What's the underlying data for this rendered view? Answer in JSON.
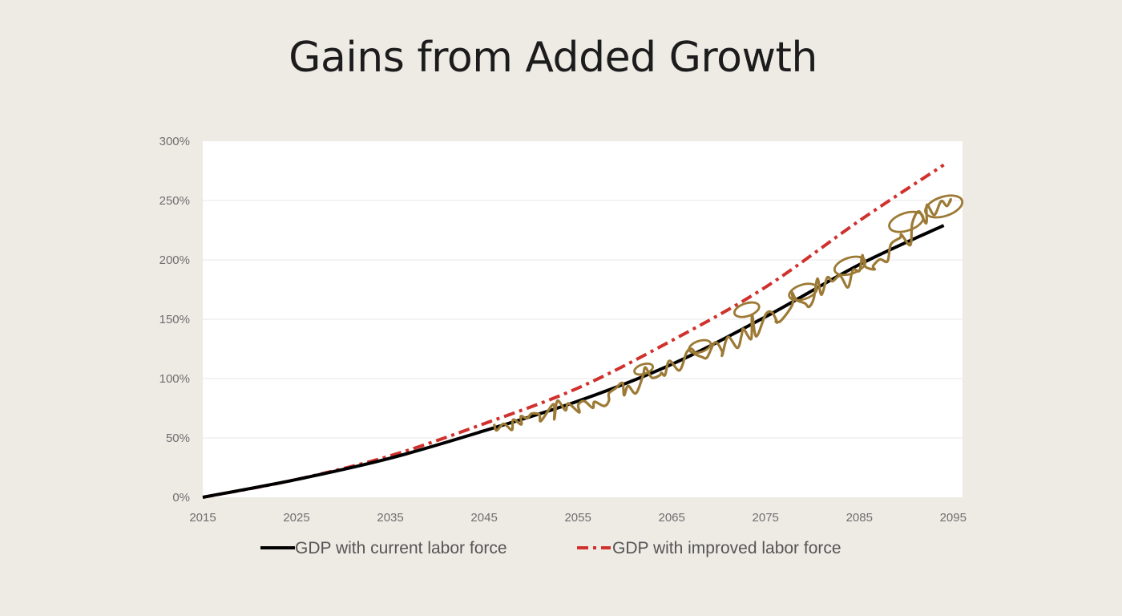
{
  "title": "Gains from Added Growth",
  "colors": {
    "background": "#eeebe5",
    "plot_background": "#ffffff",
    "gridline": "#ececec",
    "current": "#000000",
    "improved": "#d0312d",
    "scribble": "#9c7a35"
  },
  "chart_data": {
    "type": "line",
    "title": "Gains from Added Growth",
    "xlabel": "",
    "ylabel": "",
    "xlim": [
      2015,
      2096
    ],
    "ylim": [
      0,
      300
    ],
    "x_ticks": [
      2015,
      2025,
      2035,
      2045,
      2055,
      2065,
      2075,
      2085,
      2095
    ],
    "x_tick_labels": [
      "2015",
      "2025",
      "2035",
      "2045",
      "2055",
      "2065",
      "2075",
      "2085",
      "2095"
    ],
    "y_ticks": [
      0,
      50,
      100,
      150,
      200,
      250,
      300
    ],
    "y_tick_labels": [
      "0%",
      "50%",
      "100%",
      "150%",
      "200%",
      "250%",
      "300%"
    ],
    "grid": "horizontal",
    "legend_position": "bottom",
    "series": [
      {
        "name": "GDP with current labor force",
        "style": "solid",
        "color": "#000000",
        "x": [
          2015,
          2025,
          2035,
          2045,
          2055,
          2065,
          2075,
          2085,
          2094
        ],
        "y": [
          0,
          15,
          33,
          56,
          81,
          112,
          152,
          196,
          229
        ]
      },
      {
        "name": "GDP with improved labor force",
        "style": "dashdot",
        "color": "#d0312d",
        "x": [
          2015,
          2025,
          2035,
          2045,
          2055,
          2065,
          2075,
          2085,
          2094
        ],
        "y": [
          0,
          15,
          35,
          62,
          92,
          132,
          177,
          233,
          280
        ]
      }
    ],
    "annotations": [
      {
        "type": "handwritten-scribble",
        "color": "#9c7a35",
        "x_range": [
          2046,
          2095
        ],
        "y_range": [
          62,
          262
        ]
      }
    ]
  }
}
